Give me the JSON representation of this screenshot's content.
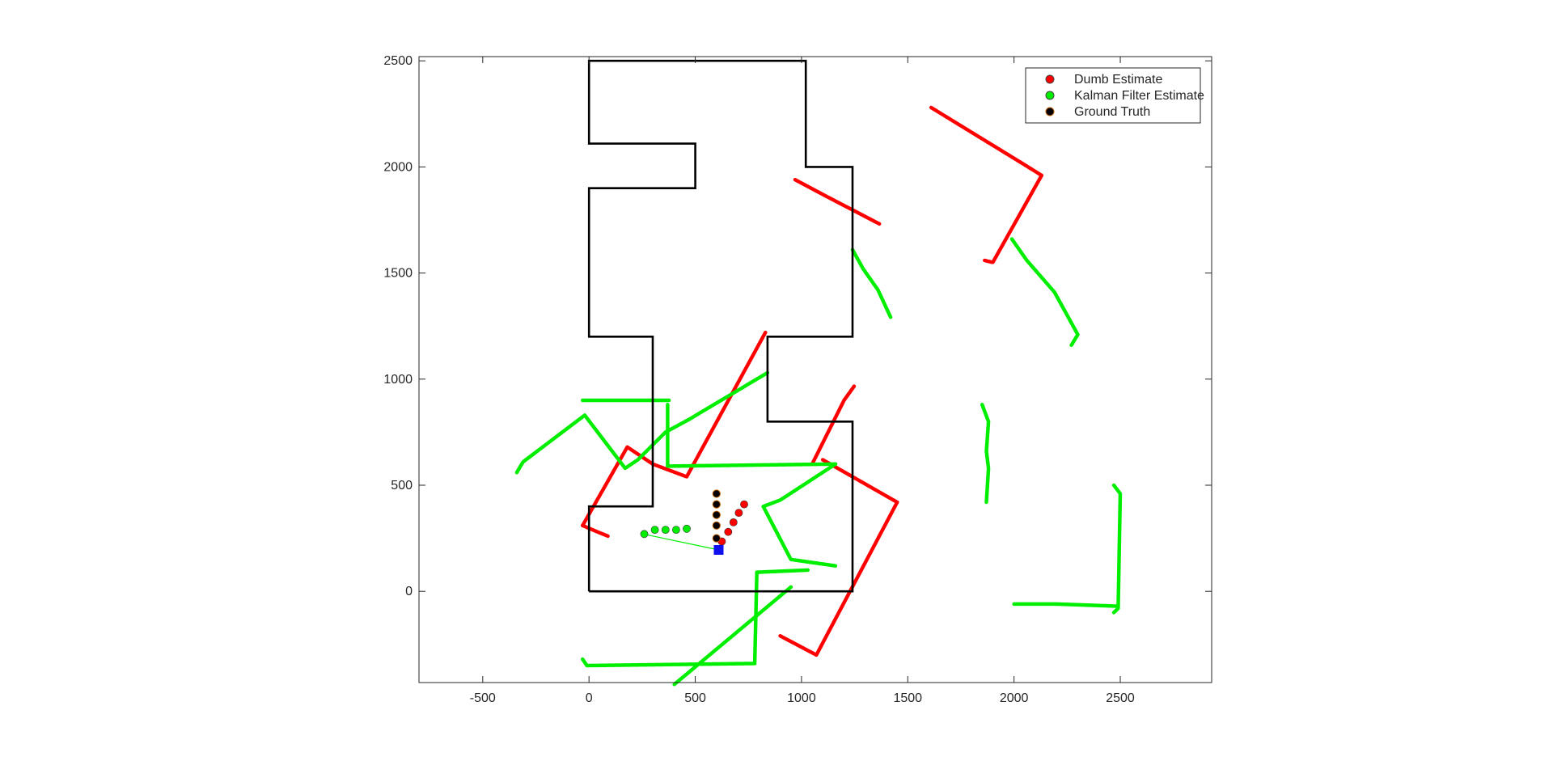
{
  "chart_data": {
    "type": "scatter",
    "title": "",
    "xlabel": "",
    "ylabel": "",
    "xlim": [
      -800,
      2930
    ],
    "ylim": [
      -430,
      2520
    ],
    "xticks": [
      -500,
      0,
      500,
      1000,
      1500,
      2000,
      2500
    ],
    "yticks": [
      0,
      500,
      1000,
      1500,
      2000,
      2500
    ],
    "grid": false,
    "legend_position": "top-right",
    "colors": {
      "map": "#000000",
      "dumb": "#ff0000",
      "kalman": "#00ee00",
      "truth": "#000000",
      "robot": "#1010ee"
    },
    "map_walls": [
      [
        0,
        0
      ],
      [
        0,
        400
      ],
      [
        300,
        400
      ],
      [
        300,
        1200
      ],
      [
        0,
        1200
      ],
      [
        0,
        1900
      ],
      [
        500,
        1900
      ],
      [
        500,
        2110
      ],
      [
        0,
        2110
      ],
      [
        0,
        2500
      ],
      [
        1020,
        2500
      ],
      [
        1020,
        2000
      ],
      [
        1240,
        2000
      ],
      [
        1240,
        1200
      ],
      [
        840,
        1200
      ],
      [
        840,
        800
      ],
      [
        1240,
        800
      ],
      [
        1240,
        0
      ],
      [
        0,
        0
      ]
    ],
    "series": [
      {
        "name": "Dumb Estimate",
        "marker": "red-dot-icon",
        "trails": [
          [
            [
              -30,
              310
            ],
            [
              180,
              680
            ],
            [
              300,
              600
            ],
            [
              460,
              540
            ],
            [
              830,
              1220
            ]
          ],
          [
            [
              -30,
              310
            ],
            [
              40,
              280
            ],
            [
              90,
              260
            ]
          ],
          [
            [
              1050,
              600
            ],
            [
              1200,
              900
            ],
            [
              1250,
              970
            ]
          ],
          [
            [
              1100,
              620
            ],
            [
              1450,
              420
            ],
            [
              1070,
              -300
            ],
            [
              900,
              -210
            ]
          ],
          [
            [
              970,
              1940
            ],
            [
              1120,
              1860
            ],
            [
              1370,
              1730
            ]
          ],
          [
            [
              1610,
              2280
            ],
            [
              2050,
              2010
            ],
            [
              2130,
              1960
            ]
          ],
          [
            [
              2130,
              1960
            ],
            [
              1900,
              1550
            ],
            [
              1860,
              1560
            ]
          ]
        ],
        "markers": [
          [
            625,
            235
          ],
          [
            655,
            280
          ],
          [
            680,
            325
          ],
          [
            705,
            370
          ],
          [
            730,
            410
          ]
        ]
      },
      {
        "name": "Kalman Filter Estimate",
        "marker": "green-dot-icon",
        "trails": [
          [
            [
              -340,
              560
            ],
            [
              -310,
              610
            ],
            [
              -20,
              830
            ],
            [
              170,
              580
            ],
            [
              230,
              620
            ],
            [
              360,
              750
            ],
            [
              470,
              810
            ],
            [
              840,
              1030
            ]
          ],
          [
            [
              -30,
              900
            ],
            [
              380,
              900
            ]
          ],
          [
            [
              370,
              880
            ],
            [
              370,
              590
            ],
            [
              1160,
              600
            ]
          ],
          [
            [
              1160,
              600
            ],
            [
              900,
              430
            ],
            [
              820,
              400
            ],
            [
              950,
              150
            ],
            [
              1160,
              120
            ]
          ],
          [
            [
              -30,
              -320
            ],
            [
              -10,
              -350
            ],
            [
              780,
              -340
            ],
            [
              790,
              90
            ],
            [
              1030,
              100
            ]
          ],
          [
            [
              950,
              20
            ],
            [
              400,
              -440
            ]
          ],
          [
            [
              1240,
              1610
            ],
            [
              1290,
              1520
            ],
            [
              1360,
              1420
            ],
            [
              1420,
              1290
            ]
          ],
          [
            [
              1990,
              1660
            ],
            [
              2060,
              1560
            ],
            [
              2190,
              1410
            ],
            [
              2300,
              1210
            ],
            [
              2270,
              1160
            ]
          ],
          [
            [
              1850,
              880
            ],
            [
              1880,
              800
            ],
            [
              1870,
              660
            ],
            [
              1880,
              580
            ],
            [
              1870,
              420
            ]
          ],
          [
            [
              2470,
              500
            ],
            [
              2500,
              460
            ],
            [
              2490,
              -80
            ],
            [
              2470,
              -100
            ]
          ],
          [
            [
              2000,
              -60
            ],
            [
              2200,
              -60
            ],
            [
              2480,
              -70
            ]
          ]
        ],
        "markers": [
          [
            260,
            270
          ],
          [
            310,
            290
          ],
          [
            360,
            290
          ],
          [
            410,
            290
          ],
          [
            460,
            295
          ]
        ]
      },
      {
        "name": "Ground Truth",
        "marker": "black-dot-icon",
        "trails": [],
        "markers": [
          [
            600,
            250
          ],
          [
            600,
            310
          ],
          [
            600,
            360
          ],
          [
            600,
            410
          ],
          [
            600,
            460
          ]
        ]
      }
    ],
    "robot": {
      "x": 610,
      "y": 195
    },
    "robot_line": [
      [
        255,
        270
      ],
      [
        610,
        195
      ]
    ]
  }
}
